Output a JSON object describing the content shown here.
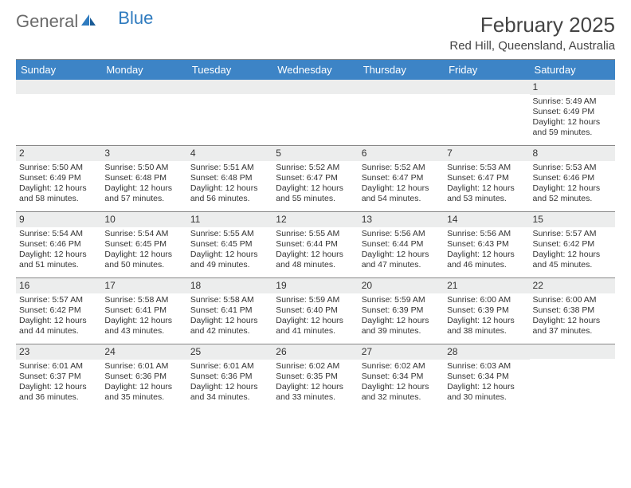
{
  "brand": {
    "part1": "General",
    "part2": "Blue"
  },
  "title": {
    "month": "February 2025",
    "location": "Red Hill, Queensland, Australia"
  },
  "colors": {
    "header_bg": "#3d84c6",
    "num_bg": "#eceded",
    "rule": "#888888",
    "text": "#333333",
    "brand_gray": "#6a6a6a",
    "brand_blue": "#2f7bbf"
  },
  "dayNames": [
    "Sunday",
    "Monday",
    "Tuesday",
    "Wednesday",
    "Thursday",
    "Friday",
    "Saturday"
  ],
  "layout": {
    "firstWeekLeadingBlanks": 6,
    "lastDay": 28
  },
  "days": {
    "1": {
      "sunrise": "Sunrise: 5:49 AM",
      "sunset": "Sunset: 6:49 PM",
      "daylight": "Daylight: 12 hours and 59 minutes."
    },
    "2": {
      "sunrise": "Sunrise: 5:50 AM",
      "sunset": "Sunset: 6:49 PM",
      "daylight": "Daylight: 12 hours and 58 minutes."
    },
    "3": {
      "sunrise": "Sunrise: 5:50 AM",
      "sunset": "Sunset: 6:48 PM",
      "daylight": "Daylight: 12 hours and 57 minutes."
    },
    "4": {
      "sunrise": "Sunrise: 5:51 AM",
      "sunset": "Sunset: 6:48 PM",
      "daylight": "Daylight: 12 hours and 56 minutes."
    },
    "5": {
      "sunrise": "Sunrise: 5:52 AM",
      "sunset": "Sunset: 6:47 PM",
      "daylight": "Daylight: 12 hours and 55 minutes."
    },
    "6": {
      "sunrise": "Sunrise: 5:52 AM",
      "sunset": "Sunset: 6:47 PM",
      "daylight": "Daylight: 12 hours and 54 minutes."
    },
    "7": {
      "sunrise": "Sunrise: 5:53 AM",
      "sunset": "Sunset: 6:47 PM",
      "daylight": "Daylight: 12 hours and 53 minutes."
    },
    "8": {
      "sunrise": "Sunrise: 5:53 AM",
      "sunset": "Sunset: 6:46 PM",
      "daylight": "Daylight: 12 hours and 52 minutes."
    },
    "9": {
      "sunrise": "Sunrise: 5:54 AM",
      "sunset": "Sunset: 6:46 PM",
      "daylight": "Daylight: 12 hours and 51 minutes."
    },
    "10": {
      "sunrise": "Sunrise: 5:54 AM",
      "sunset": "Sunset: 6:45 PM",
      "daylight": "Daylight: 12 hours and 50 minutes."
    },
    "11": {
      "sunrise": "Sunrise: 5:55 AM",
      "sunset": "Sunset: 6:45 PM",
      "daylight": "Daylight: 12 hours and 49 minutes."
    },
    "12": {
      "sunrise": "Sunrise: 5:55 AM",
      "sunset": "Sunset: 6:44 PM",
      "daylight": "Daylight: 12 hours and 48 minutes."
    },
    "13": {
      "sunrise": "Sunrise: 5:56 AM",
      "sunset": "Sunset: 6:44 PM",
      "daylight": "Daylight: 12 hours and 47 minutes."
    },
    "14": {
      "sunrise": "Sunrise: 5:56 AM",
      "sunset": "Sunset: 6:43 PM",
      "daylight": "Daylight: 12 hours and 46 minutes."
    },
    "15": {
      "sunrise": "Sunrise: 5:57 AM",
      "sunset": "Sunset: 6:42 PM",
      "daylight": "Daylight: 12 hours and 45 minutes."
    },
    "16": {
      "sunrise": "Sunrise: 5:57 AM",
      "sunset": "Sunset: 6:42 PM",
      "daylight": "Daylight: 12 hours and 44 minutes."
    },
    "17": {
      "sunrise": "Sunrise: 5:58 AM",
      "sunset": "Sunset: 6:41 PM",
      "daylight": "Daylight: 12 hours and 43 minutes."
    },
    "18": {
      "sunrise": "Sunrise: 5:58 AM",
      "sunset": "Sunset: 6:41 PM",
      "daylight": "Daylight: 12 hours and 42 minutes."
    },
    "19": {
      "sunrise": "Sunrise: 5:59 AM",
      "sunset": "Sunset: 6:40 PM",
      "daylight": "Daylight: 12 hours and 41 minutes."
    },
    "20": {
      "sunrise": "Sunrise: 5:59 AM",
      "sunset": "Sunset: 6:39 PM",
      "daylight": "Daylight: 12 hours and 39 minutes."
    },
    "21": {
      "sunrise": "Sunrise: 6:00 AM",
      "sunset": "Sunset: 6:39 PM",
      "daylight": "Daylight: 12 hours and 38 minutes."
    },
    "22": {
      "sunrise": "Sunrise: 6:00 AM",
      "sunset": "Sunset: 6:38 PM",
      "daylight": "Daylight: 12 hours and 37 minutes."
    },
    "23": {
      "sunrise": "Sunrise: 6:01 AM",
      "sunset": "Sunset: 6:37 PM",
      "daylight": "Daylight: 12 hours and 36 minutes."
    },
    "24": {
      "sunrise": "Sunrise: 6:01 AM",
      "sunset": "Sunset: 6:36 PM",
      "daylight": "Daylight: 12 hours and 35 minutes."
    },
    "25": {
      "sunrise": "Sunrise: 6:01 AM",
      "sunset": "Sunset: 6:36 PM",
      "daylight": "Daylight: 12 hours and 34 minutes."
    },
    "26": {
      "sunrise": "Sunrise: 6:02 AM",
      "sunset": "Sunset: 6:35 PM",
      "daylight": "Daylight: 12 hours and 33 minutes."
    },
    "27": {
      "sunrise": "Sunrise: 6:02 AM",
      "sunset": "Sunset: 6:34 PM",
      "daylight": "Daylight: 12 hours and 32 minutes."
    },
    "28": {
      "sunrise": "Sunrise: 6:03 AM",
      "sunset": "Sunset: 6:34 PM",
      "daylight": "Daylight: 12 hours and 30 minutes."
    }
  }
}
